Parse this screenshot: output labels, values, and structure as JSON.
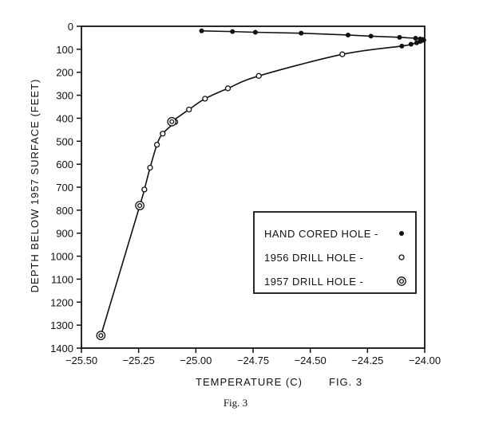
{
  "chart_data": {
    "type": "scatter",
    "title": "",
    "xlabel": "TEMPERATURE (C)",
    "ylabel": "DEPTH BELOW 1957 SURFACE (FEET)",
    "fig_label": "FIG. 3",
    "caption": "Fig. 3",
    "xlim": [
      -25.5,
      -24.0
    ],
    "ylim": [
      0,
      1400
    ],
    "y_inverted": true,
    "grid": false,
    "x_ticks": [
      {
        "value": -25.5,
        "label": "−25.50"
      },
      {
        "value": -25.25,
        "label": "−25.25"
      },
      {
        "value": -25.0,
        "label": "−25.00"
      },
      {
        "value": -24.75,
        "label": "−24.75"
      },
      {
        "value": -24.5,
        "label": "−24.50"
      },
      {
        "value": -24.25,
        "label": "−24.25"
      },
      {
        "value": -24.0,
        "label": "−24.00"
      }
    ],
    "y_ticks": [
      {
        "value": 0,
        "label": "0"
      },
      {
        "value": 100,
        "label": "100"
      },
      {
        "value": 200,
        "label": "200"
      },
      {
        "value": 300,
        "label": "300"
      },
      {
        "value": 400,
        "label": "400"
      },
      {
        "value": 500,
        "label": "500"
      },
      {
        "value": 600,
        "label": "600"
      },
      {
        "value": 700,
        "label": "700"
      },
      {
        "value": 800,
        "label": "800"
      },
      {
        "value": 900,
        "label": "900"
      },
      {
        "value": 1000,
        "label": "1000"
      },
      {
        "value": 1100,
        "label": "1100"
      },
      {
        "value": 1200,
        "label": "1200"
      },
      {
        "value": 1300,
        "label": "1300"
      },
      {
        "value": 1400,
        "label": "1400"
      }
    ],
    "legend_position": "lower-right",
    "series": [
      {
        "name": "HAND CORED HOLE",
        "marker": "filled-circle",
        "points": [
          {
            "x": -24.975,
            "y": 20
          },
          {
            "x": -24.84,
            "y": 23
          },
          {
            "x": -24.74,
            "y": 26
          },
          {
            "x": -24.54,
            "y": 30
          },
          {
            "x": -24.335,
            "y": 38
          },
          {
            "x": -24.235,
            "y": 43
          },
          {
            "x": -24.11,
            "y": 48
          },
          {
            "x": -24.04,
            "y": 52
          },
          {
            "x": -24.02,
            "y": 55
          },
          {
            "x": -24.008,
            "y": 57
          },
          {
            "x": -24.004,
            "y": 60
          },
          {
            "x": -24.012,
            "y": 62
          },
          {
            "x": -24.02,
            "y": 66
          },
          {
            "x": -24.035,
            "y": 72
          },
          {
            "x": -24.06,
            "y": 78
          },
          {
            "x": -24.1,
            "y": 86
          }
        ]
      },
      {
        "name": "1956 DRILL HOLE",
        "marker": "open-circle",
        "points": [
          {
            "x": -24.36,
            "y": 122
          },
          {
            "x": -24.725,
            "y": 216
          },
          {
            "x": -24.86,
            "y": 270
          },
          {
            "x": -24.96,
            "y": 315
          },
          {
            "x": -25.03,
            "y": 362
          },
          {
            "x": -25.09,
            "y": 416
          },
          {
            "x": -25.145,
            "y": 467
          },
          {
            "x": -25.17,
            "y": 515
          },
          {
            "x": -25.2,
            "y": 615
          },
          {
            "x": -25.225,
            "y": 710
          }
        ]
      },
      {
        "name": "1957 DRILL HOLE",
        "marker": "double-circle",
        "points": [
          {
            "x": -25.105,
            "y": 415
          },
          {
            "x": -25.245,
            "y": 780
          },
          {
            "x": -25.415,
            "y": 1345
          }
        ]
      }
    ]
  }
}
